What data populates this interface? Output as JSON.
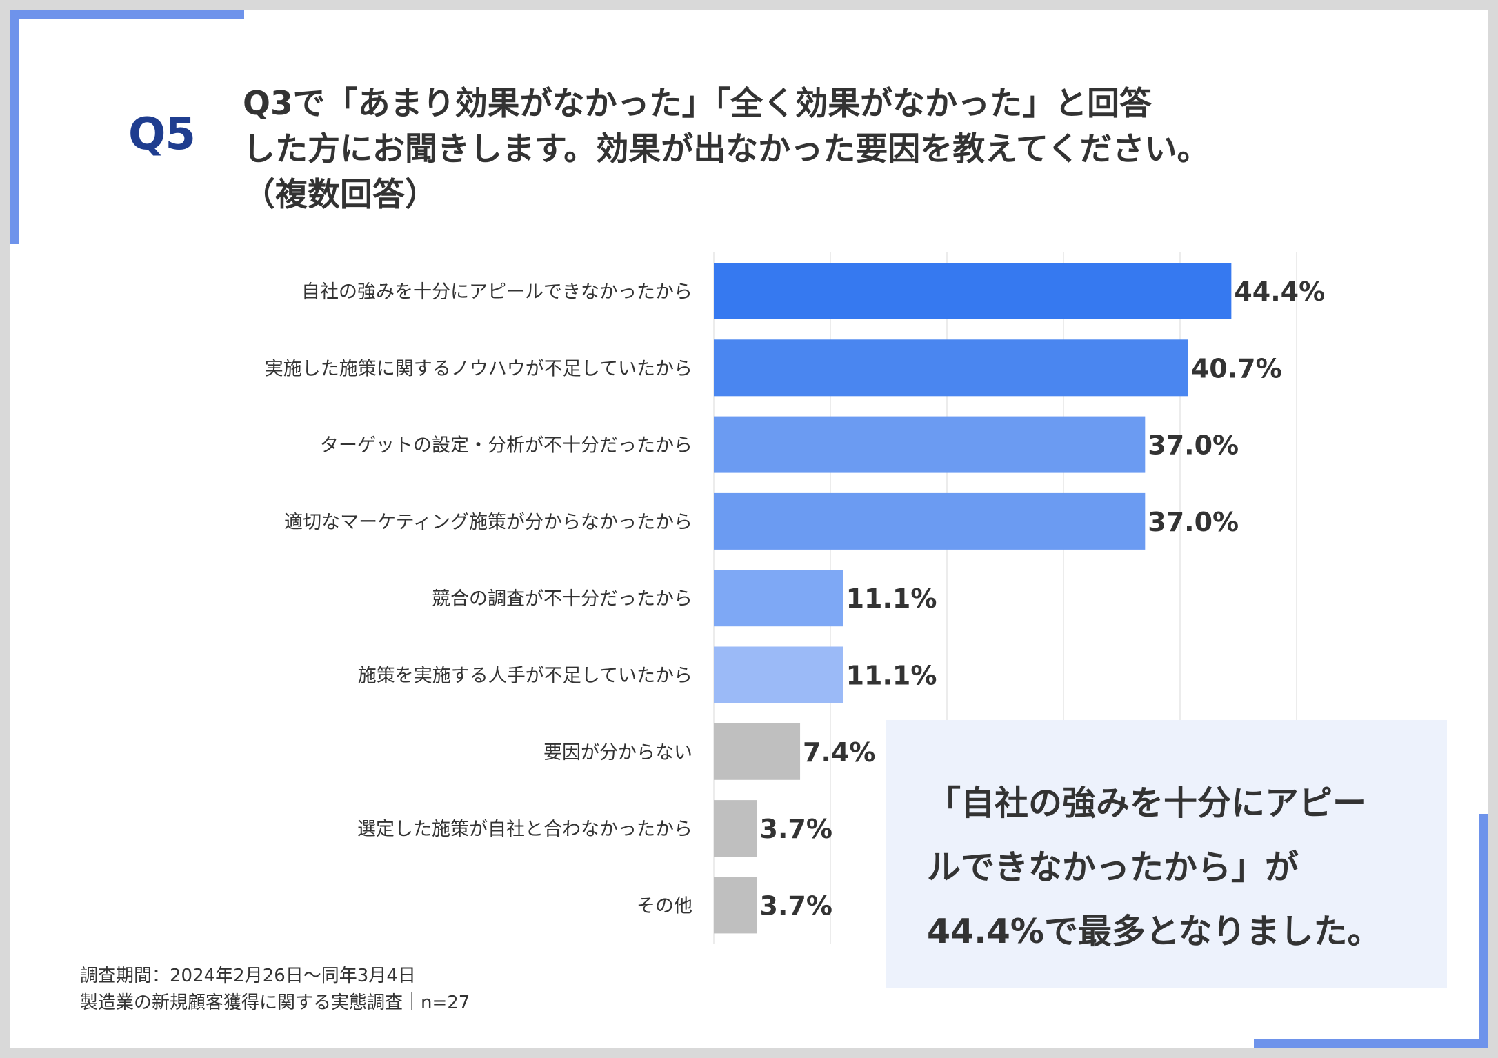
{
  "question": {
    "label": "Q5",
    "lines": [
      "Q3で「あまり効果がなかった」「全く効果がなかった」と回答",
      "した方にお聞きします。効果が出なかった要因を教えてください。",
      "（複数回答）"
    ]
  },
  "chart_data": {
    "type": "bar",
    "orientation": "horizontal",
    "title": "",
    "xlabel": "",
    "ylabel": "",
    "xlim": [
      0,
      50
    ],
    "grid": true,
    "unit": "%",
    "categories": [
      "自社の強みを十分にアピールできなかったから",
      "実施した施策に関するノウハウが不足していたから",
      "ターゲットの設定・分析が不十分だったから",
      "適切なマーケティング施策が分からなかったから",
      "競合の調査が不十分だったから",
      "施策を実施する人手が不足していたから",
      "要因が分からない",
      "選定した施策が自社と合わなかったから",
      "その他"
    ],
    "values": [
      44.4,
      40.7,
      37.0,
      37.0,
      11.1,
      11.1,
      7.4,
      3.7,
      3.7
    ],
    "value_labels": [
      "44.4%",
      "40.7%",
      "37.0%",
      "37.0%",
      "11.1%",
      "11.1%",
      "7.4%",
      "3.7%",
      "3.7%"
    ],
    "colors": [
      "#3679f0",
      "#4a86f0",
      "#6b9bf2",
      "#6b9bf2",
      "#7ea8f5",
      "#9bbaf7",
      "#bfbfbf",
      "#bfbfbf",
      "#bfbfbf"
    ]
  },
  "summary": {
    "lines": [
      "「自社の強みを十分にアピー",
      "ルできなかったから」が",
      "44.4%で最多となりました。"
    ]
  },
  "footnote": {
    "lines": [
      "調査期間：2024年2月26日～同年3月4日",
      "製造業の新規顧客獲得に関する実態調査｜n=27"
    ]
  },
  "colors": {
    "accent": "#6e93eb",
    "title_blue": "#1f3d8f",
    "summary_bg": "#edf2fc",
    "text": "#333333"
  }
}
